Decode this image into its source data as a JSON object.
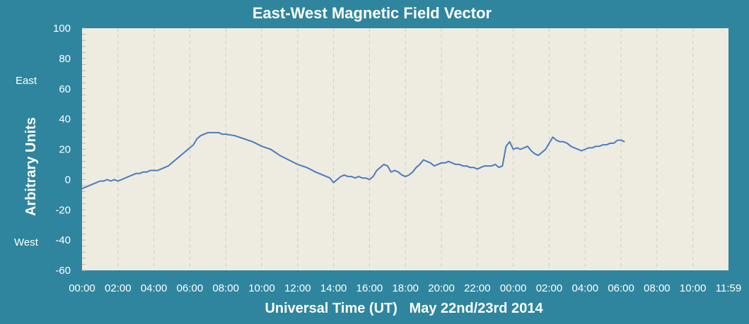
{
  "chart_data": {
    "type": "line",
    "title": "East-West Magnetic Field Vector",
    "xlabel": "Universal Time (UT)   May 22nd/23rd 2014",
    "ylabel": "Arbitrary Units",
    "direction_labels": {
      "east": "East",
      "west": "West"
    },
    "x_unit": "hours since 00:00 UT May 22nd 2014",
    "xlim": [
      0,
      35.98
    ],
    "ylim": [
      -60,
      100
    ],
    "y_ticks": [
      100,
      80,
      60,
      40,
      20,
      0,
      -20,
      -40,
      -60
    ],
    "x_tick_labels": [
      "00:00",
      "02:00",
      "04:00",
      "06:00",
      "08:00",
      "10:00",
      "12:00",
      "14:00",
      "16:00",
      "18:00",
      "20:00",
      "22:00",
      "00:00",
      "02:00",
      "04:00",
      "06:00",
      "08:00",
      "10:00",
      "11:59"
    ],
    "grid": {
      "x": true,
      "y": false
    },
    "colors": {
      "line": "#4A7CBF",
      "plot_background": "#EEEBE1",
      "frame_background": "#2F859E",
      "grid": "#D2CFC6"
    },
    "series": [
      {
        "name": "",
        "x": [
          0.0,
          0.2,
          0.4,
          0.6,
          0.8,
          1.0,
          1.2,
          1.4,
          1.6,
          1.8,
          2.0,
          2.2,
          2.4,
          2.6,
          2.8,
          3.0,
          3.2,
          3.4,
          3.6,
          3.8,
          4.0,
          4.2,
          4.4,
          4.6,
          4.8,
          5.0,
          5.2,
          5.4,
          5.6,
          5.8,
          6.0,
          6.2,
          6.4,
          6.6,
          6.8,
          7.0,
          7.2,
          7.4,
          7.6,
          7.8,
          8.0,
          8.5,
          9.0,
          9.5,
          10.0,
          10.5,
          11.0,
          11.5,
          12.0,
          12.5,
          13.0,
          13.2,
          13.4,
          13.6,
          13.8,
          14.0,
          14.2,
          14.4,
          14.6,
          14.8,
          15.0,
          15.2,
          15.4,
          15.6,
          15.8,
          16.0,
          16.2,
          16.4,
          16.6,
          16.8,
          17.0,
          17.2,
          17.4,
          17.6,
          17.8,
          18.0,
          18.2,
          18.4,
          18.6,
          18.8,
          19.0,
          19.2,
          19.4,
          19.6,
          19.8,
          20.0,
          20.2,
          20.4,
          20.6,
          20.8,
          21.0,
          21.2,
          21.4,
          21.6,
          21.8,
          22.0,
          22.2,
          22.4,
          22.6,
          22.8,
          23.0,
          23.2,
          23.4,
          23.6,
          23.8,
          24.0,
          24.2,
          24.4,
          24.6,
          24.8,
          25.0,
          25.2,
          25.4,
          25.6,
          25.8,
          26.0,
          26.2,
          26.4,
          26.6,
          26.8,
          27.0,
          27.2,
          27.4,
          27.6,
          27.8,
          28.0,
          28.2,
          28.4,
          28.6,
          28.8,
          29.0,
          29.2,
          29.4,
          29.6,
          29.8,
          30.0,
          30.2
        ],
        "values": [
          -6,
          -5,
          -4,
          -3,
          -2,
          -1,
          -1,
          0,
          -1,
          0,
          -1,
          0,
          1,
          2,
          3,
          4,
          4,
          5,
          5,
          6,
          6,
          6,
          7,
          8,
          9,
          11,
          13,
          15,
          17,
          19,
          21,
          23,
          27,
          29,
          30,
          31,
          31,
          31,
          31,
          30,
          30,
          29,
          27,
          25,
          22,
          20,
          16,
          13,
          10,
          8,
          5,
          4,
          3,
          2,
          1,
          -2,
          0,
          2,
          3,
          2,
          2,
          1,
          2,
          1,
          1,
          0,
          2,
          6,
          8,
          10,
          9,
          5,
          6,
          5,
          3,
          2,
          3,
          5,
          8,
          10,
          13,
          12,
          11,
          9,
          10,
          11,
          11,
          12,
          11,
          10,
          10,
          9,
          9,
          8,
          8,
          7,
          8,
          9,
          9,
          9,
          10,
          8,
          9,
          22,
          25,
          20,
          21,
          20,
          21,
          22,
          19,
          17,
          16,
          18,
          20,
          24,
          28,
          26,
          25,
          25,
          24,
          22,
          21,
          20,
          19,
          20,
          21,
          21,
          22,
          22,
          23,
          23,
          24,
          24,
          26,
          26,
          25
        ]
      }
    ]
  }
}
